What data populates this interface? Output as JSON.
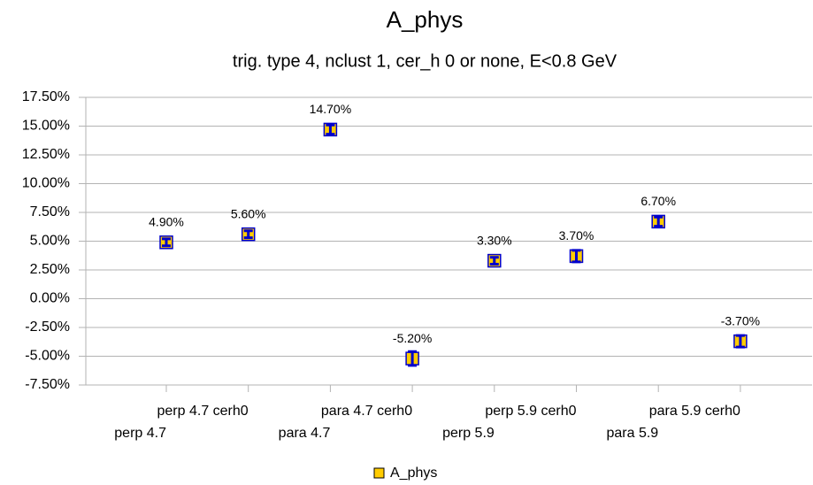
{
  "chart_data": {
    "type": "point",
    "title": "A_phys",
    "subtitle": "trig. type 4, nclust 1, cer_h 0 or none, E<0.8 GeV",
    "categories": [
      "perp 4.7",
      "perp 4.7 cerh0",
      "para 4.7",
      "para 4.7 cerh0",
      "perp 5.9",
      "perp 5.9 cerh0",
      "para 5.9",
      "para 5.9 cerh0"
    ],
    "series": [
      {
        "name": "A_phys",
        "color": "#ffcc00",
        "error_color": "#0000cc",
        "values": [
          4.9,
          5.6,
          14.7,
          -5.2,
          3.3,
          3.7,
          6.7,
          -3.7
        ],
        "errors": [
          0.3,
          0.3,
          0.4,
          0.6,
          0.3,
          0.5,
          0.4,
          0.5
        ],
        "value_labels": [
          "4.90%",
          "5.60%",
          "14.70%",
          "-5.20%",
          "3.30%",
          "3.70%",
          "6.70%",
          "-3.70%"
        ]
      }
    ],
    "ylim": [
      -7.5,
      17.5
    ],
    "yticks": [
      {
        "value": -7.5,
        "label": "-7.50%"
      },
      {
        "value": -5,
        "label": "-5.00%"
      },
      {
        "value": -2.5,
        "label": "-2.50%"
      },
      {
        "value": 0,
        "label": "0.00%"
      },
      {
        "value": 2.5,
        "label": "2.50%"
      },
      {
        "value": 5,
        "label": "5.00%"
      },
      {
        "value": 7.5,
        "label": "7.50%"
      },
      {
        "value": 10,
        "label": "10.00%"
      },
      {
        "value": 12.5,
        "label": "12.50%"
      },
      {
        "value": 15,
        "label": "15.00%"
      },
      {
        "value": 17.5,
        "label": "17.50%"
      }
    ],
    "grid": true,
    "legend": "bottom"
  }
}
